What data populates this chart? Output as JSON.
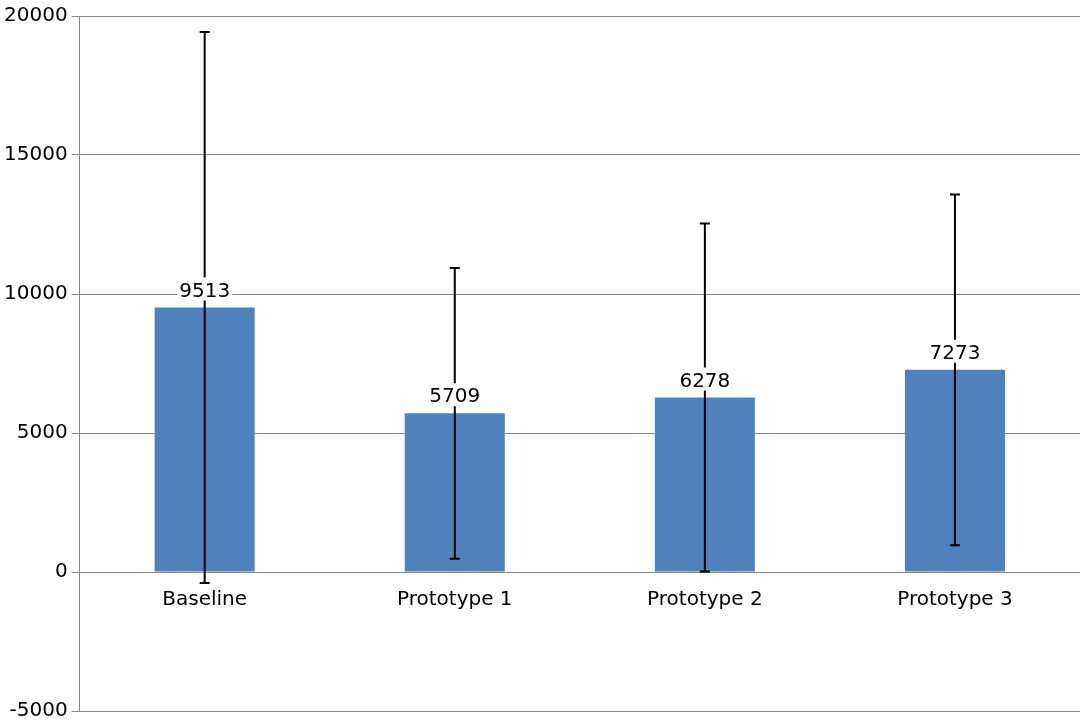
{
  "chart_data": {
    "type": "bar",
    "categories": [
      "Baseline",
      "Prototype 1",
      "Prototype 2",
      "Prototype 3"
    ],
    "values": [
      9513,
      5709,
      6278,
      7273
    ],
    "errors": [
      9910,
      5230,
      6260,
      6310
    ],
    "color": "#4f81bd",
    "data_labels": true,
    "ylim": [
      -5000,
      20000
    ],
    "yticks": [
      -5000,
      0,
      5000,
      10000,
      15000,
      20000
    ],
    "grid": "y",
    "legend": false
  }
}
